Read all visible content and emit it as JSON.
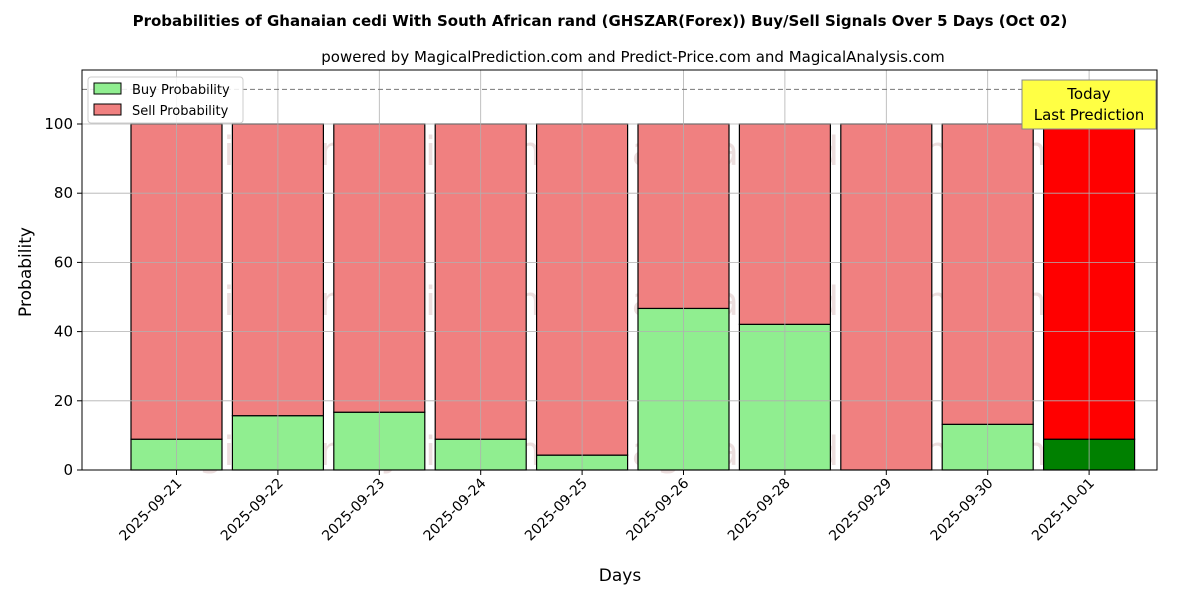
{
  "chart_data": {
    "type": "bar",
    "title": "Probabilities of Ghanaian cedi With South African rand (GHSZAR(Forex)) Buy/Sell Signals Over 5 Days (Oct 02)",
    "subtitle": "powered by MagicalPrediction.com and Predict-Price.com and MagicalAnalysis.com",
    "xlabel": "Days",
    "ylabel": "Probability",
    "ylim": [
      0,
      115
    ],
    "yticks": [
      0,
      20,
      40,
      60,
      80,
      100
    ],
    "categories": [
      "2025-09-21",
      "2025-09-22",
      "2025-09-23",
      "2025-09-24",
      "2025-09-25",
      "2025-09-26",
      "2025-09-28",
      "2025-09-29",
      "2025-09-30",
      "2025-10-01"
    ],
    "series": [
      {
        "name": "Buy Probability",
        "color": "#90ee90",
        "values": [
          8.9,
          15.7,
          16.7,
          8.9,
          4.3,
          46.7,
          42.1,
          0,
          13.2,
          8.9
        ]
      },
      {
        "name": "Sell Probability",
        "color": "#f08080",
        "values": [
          91.1,
          84.3,
          83.3,
          91.1,
          95.7,
          53.3,
          57.9,
          100,
          86.8,
          91.1
        ]
      }
    ],
    "highlight": {
      "buy_color": "#008000",
      "sell_color": "#ff0000"
    },
    "threshold_line": 110,
    "annotation": [
      "Today",
      "Last Prediction"
    ],
    "watermarks": [
      "MagicalAnalysis.com",
      "MagicalPrediction.com"
    ],
    "grid": true,
    "legend": "top-left"
  }
}
